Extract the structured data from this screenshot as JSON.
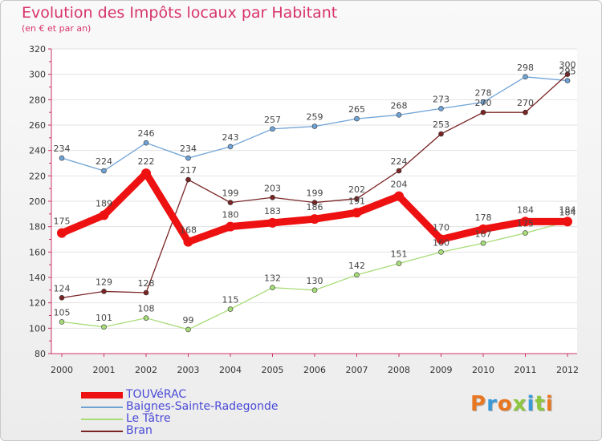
{
  "header": {
    "title": "Evolution des Impôts locaux par Habitant",
    "subtitle": "(en € et par an)"
  },
  "brand": {
    "text": "Proxiti",
    "colors": [
      "#e87722",
      "#3a9ad9",
      "#e87722",
      "#8dc63f",
      "#3a9ad9",
      "#8dc63f",
      "#e87722"
    ]
  },
  "chart_data": {
    "type": "line",
    "title": "Evolution des Impôts locaux par Habitant",
    "subtitle": "(en € et par an)",
    "xlabel": "",
    "ylabel": "",
    "ylim": [
      80,
      320
    ],
    "yticks": [
      80,
      100,
      120,
      140,
      160,
      180,
      200,
      220,
      240,
      260,
      280,
      300,
      320
    ],
    "grid": "horizontal",
    "legend_position": "bottom-left",
    "categories": [
      "2000",
      "2001",
      "2002",
      "2003",
      "2004",
      "2005",
      "2006",
      "2007",
      "2008",
      "2009",
      "2010",
      "2011",
      "2012"
    ],
    "series": [
      {
        "name": "TOUVéRAC",
        "color": "#ee1111",
        "emphasis": true,
        "values": [
          175,
          189,
          222,
          168,
          180,
          183,
          186,
          191,
          204,
          170,
          178,
          184,
          184
        ]
      },
      {
        "name": "Baignes-Sainte-Radegonde",
        "color": "#6fa3d6",
        "values": [
          234,
          224,
          246,
          234,
          243,
          257,
          259,
          265,
          268,
          273,
          278,
          298,
          295
        ]
      },
      {
        "name": "Le Tâtre",
        "color": "#a8dc78",
        "values": [
          105,
          101,
          108,
          99,
          115,
          132,
          130,
          142,
          151,
          160,
          167,
          175,
          184
        ]
      },
      {
        "name": "Bran",
        "color": "#7a2424",
        "values": [
          124,
          129,
          128,
          217,
          199,
          203,
          199,
          202,
          224,
          253,
          270,
          270,
          300
        ]
      }
    ]
  }
}
